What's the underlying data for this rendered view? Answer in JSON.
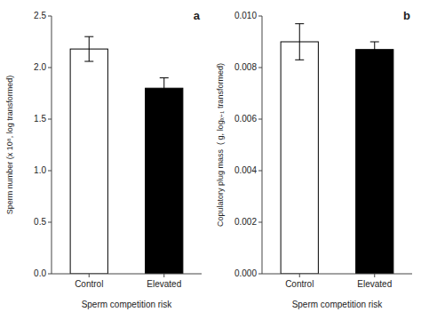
{
  "chart_data": [
    {
      "type": "bar",
      "annotation": "a",
      "categories": [
        "Control",
        "Elevated"
      ],
      "values": [
        2.18,
        1.8
      ],
      "colors": [
        "white",
        "black"
      ],
      "error_lo": [
        0.12,
        0.08
      ],
      "error_hi": [
        0.12,
        0.1
      ],
      "xlabel": "Sperm competition risk",
      "ylabel": "Sperm number (x 10⁸, log transformed)",
      "ylim": [
        0.0,
        2.5
      ],
      "yticks": [
        {
          "value": 0.0,
          "label": "0.0"
        },
        0.5,
        {
          "value": 1.0,
          "label": "1.0"
        },
        1.5,
        {
          "value": 2.0,
          "label": "2.0"
        },
        2.5
      ]
    },
    {
      "type": "bar",
      "annotation": "b",
      "categories": [
        "Control",
        "Elevated"
      ],
      "values": [
        0.009,
        0.0087
      ],
      "colors": [
        "white",
        "black"
      ],
      "error_lo": [
        0.0007,
        0.0003
      ],
      "error_hi": [
        0.0007,
        0.0003
      ],
      "xlabel": "Sperm competition risk",
      "ylabel": "Copulatory plug mass  ( g, logₓ₊₁ transformed)",
      "ylim": [
        0.0,
        0.01
      ],
      "yticks": [
        {
          "value": 0.0,
          "label": "0.000"
        },
        0.002,
        0.004,
        0.006,
        0.008,
        {
          "value": 0.01,
          "label": "0.010"
        }
      ]
    }
  ]
}
